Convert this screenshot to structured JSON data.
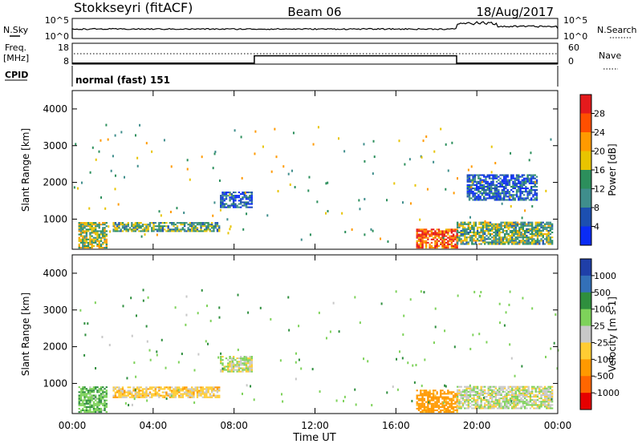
{
  "header": {
    "radar": "Stokkseyri (fitACF)",
    "beam": "Beam 06",
    "date": "18/Aug/2017"
  },
  "strip_nsky": {
    "label": "N.Sky",
    "ticks_left": [
      "10^5",
      "10^0"
    ],
    "ticks_right": [
      "10^5",
      "10^0"
    ],
    "right_label": "N.Search"
  },
  "strip_freq": {
    "label_line1": "Freq.",
    "label_line2": "[MHz]",
    "ticks_left": [
      "18",
      "8"
    ],
    "ticks_right": [
      "60",
      "0"
    ],
    "right_label": "Nave"
  },
  "strip_cpid": {
    "label": "CPID",
    "program": "normal (fast) 151"
  },
  "power_panel": {
    "ylabel": "Slant Range [km]",
    "yticks": [
      "4000",
      "3000",
      "2000",
      "1000"
    ],
    "colorbar_label": "Power [dB]",
    "colorbar_ticks": [
      "28",
      "24",
      "20",
      "16",
      "12",
      "8",
      "4"
    ],
    "colorbar_colors": [
      "#e41a1c",
      "#ff4f00",
      "#ff9a00",
      "#e8c400",
      "#2c8f5c",
      "#3f8e8c",
      "#1c4fb0",
      "#0a2cf5"
    ]
  },
  "velocity_panel": {
    "ylabel": "Slant Range [km]",
    "yticks": [
      "4000",
      "3000",
      "2000",
      "1000"
    ],
    "colorbar_label": "Velocity [m s-1]",
    "colorbar_ticks": [
      "1000",
      "500",
      "100",
      "25",
      "-25",
      "-100",
      "-500",
      "-1000"
    ],
    "colorbar_colors": [
      "#1f3fa8",
      "#3370b8",
      "#2f8f3e",
      "#7ed25a",
      "#c8c8c8",
      "#ffcc33",
      "#ff9900",
      "#ff6600",
      "#e60000"
    ]
  },
  "xaxis": {
    "title": "Time UT",
    "ticks": [
      "00:00",
      "04:00",
      "08:00",
      "12:00",
      "16:00",
      "20:00",
      "00:00"
    ]
  },
  "chart_data": {
    "type": "heatmap",
    "x_range_hours": [
      0,
      24
    ],
    "y_range_km": [
      180,
      4500
    ],
    "nave_step": {
      "low": 2,
      "high": 60
    },
    "freq_step": {
      "segments": [
        {
          "from": 0,
          "to": 9.0,
          "freq_mhz": 8.5
        },
        {
          "from": 9.0,
          "to": 19.0,
          "freq_mhz": 12.0
        },
        {
          "from": 19.0,
          "to": 24.0,
          "freq_mhz": 8.5
        }
      ]
    },
    "power_regions": [
      {
        "t0": 0.3,
        "t1": 1.7,
        "r0": 200,
        "r1": 900,
        "power_db": 16
      },
      {
        "t0": 2.0,
        "t1": 7.3,
        "r0": 650,
        "r1": 900,
        "power_db": 13
      },
      {
        "t0": 7.3,
        "t1": 8.9,
        "r0": 1300,
        "r1": 1750,
        "power_db": 6
      },
      {
        "t0": 17.0,
        "t1": 19.0,
        "r0": 200,
        "r1": 700,
        "power_db": 26
      },
      {
        "t0": 19.0,
        "t1": 23.7,
        "r0": 300,
        "r1": 900,
        "power_db": 14
      },
      {
        "t0": 19.5,
        "t1": 23.0,
        "r0": 1500,
        "r1": 2200,
        "power_db": 6
      }
    ],
    "velocity_regions": [
      {
        "t0": 0.3,
        "t1": 1.7,
        "r0": 200,
        "r1": 900,
        "velocity": 80
      },
      {
        "t0": 2.0,
        "t1": 7.3,
        "r0": 600,
        "r1": 900,
        "velocity": -60
      },
      {
        "t0": 7.3,
        "t1": 8.9,
        "r0": 1300,
        "r1": 1750,
        "velocity": 10
      },
      {
        "t0": 17.0,
        "t1": 19.0,
        "r0": 200,
        "r1": 800,
        "velocity": -150
      },
      {
        "t0": 19.0,
        "t1": 23.7,
        "r0": 300,
        "r1": 900,
        "velocity": 5
      }
    ]
  }
}
